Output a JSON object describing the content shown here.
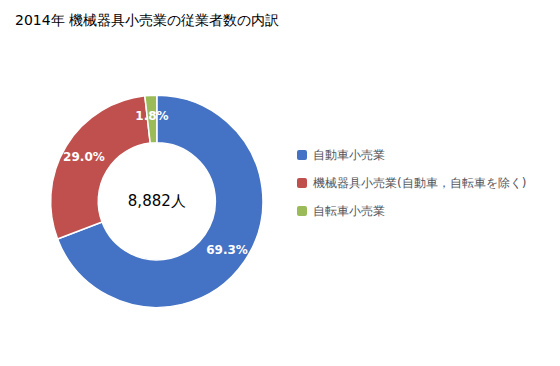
{
  "chart_data": {
    "type": "pie",
    "title": "2014年 機械器具小売業の従業者数の内訳",
    "center_text": "8,882人",
    "categories": [
      "自動車小売業",
      "機械器具小売業(自動車，自転車を除く)",
      "自転車小売業"
    ],
    "values": [
      69.3,
      29.0,
      1.8
    ],
    "value_labels": [
      "69.3%",
      "29.0%",
      "1.8%"
    ],
    "colors": [
      "#4472C4",
      "#C0504D",
      "#9BBB59"
    ],
    "data_labels": true,
    "legend": "right"
  }
}
